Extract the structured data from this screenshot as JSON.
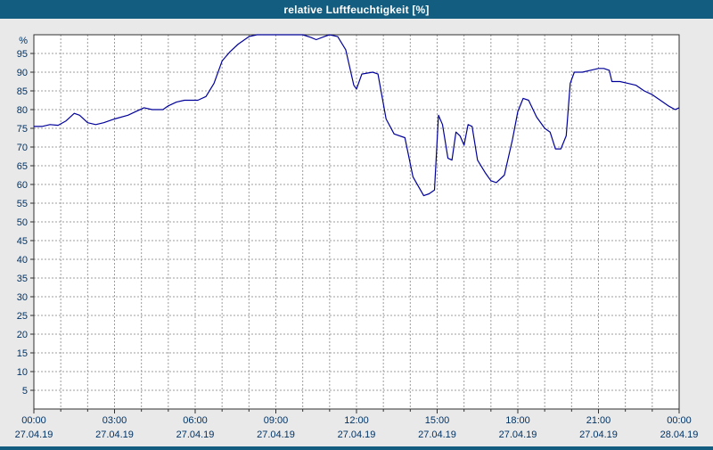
{
  "window": {
    "title": "relative Luftfeuchtigkeit [%]"
  },
  "colors": {
    "titlebar": "#135e80",
    "background": "#e9e9e9",
    "plot_bg": "#ffffff",
    "grid": "#9c9c9c",
    "plot_border": "#303030",
    "axis_text": "#003366",
    "line": "#000099"
  },
  "chart_data": {
    "type": "line",
    "title": "relative Luftfeuchtigkeit [%]",
    "ylabel": "%",
    "ylim": [
      0,
      100
    ],
    "y_ticks": [
      5,
      10,
      15,
      20,
      25,
      30,
      35,
      40,
      45,
      50,
      55,
      60,
      65,
      70,
      75,
      80,
      85,
      90,
      95
    ],
    "x_range_hours": [
      0,
      24
    ],
    "x_minor_tick_every_hours": 1,
    "grid": "dashed",
    "legend": "none",
    "x_ticks": [
      {
        "hour": 0,
        "time": "00:00",
        "date": "27.04.19"
      },
      {
        "hour": 3,
        "time": "03:00",
        "date": "27.04.19"
      },
      {
        "hour": 6,
        "time": "06:00",
        "date": "27.04.19"
      },
      {
        "hour": 9,
        "time": "09:00",
        "date": "27.04.19"
      },
      {
        "hour": 12,
        "time": "12:00",
        "date": "27.04.19"
      },
      {
        "hour": 15,
        "time": "15:00",
        "date": "27.04.19"
      },
      {
        "hour": 18,
        "time": "18:00",
        "date": "27.04.19"
      },
      {
        "hour": 21,
        "time": "21:00",
        "date": "27.04.19"
      },
      {
        "hour": 24,
        "time": "00:00",
        "date": "28.04.19"
      }
    ],
    "series": [
      {
        "name": "relative Luftfeuchtigkeit [%]",
        "points": [
          [
            0,
            75.5
          ],
          [
            0.3,
            75.5
          ],
          [
            0.6,
            76
          ],
          [
            0.9,
            75.8
          ],
          [
            1.2,
            77
          ],
          [
            1.5,
            79
          ],
          [
            1.7,
            78.5
          ],
          [
            2,
            76.5
          ],
          [
            2.3,
            76
          ],
          [
            2.6,
            76.5
          ],
          [
            3,
            77.5
          ],
          [
            3.5,
            78.5
          ],
          [
            3.8,
            79.5
          ],
          [
            4.1,
            80.5
          ],
          [
            4.4,
            80
          ],
          [
            4.8,
            80
          ],
          [
            5,
            81
          ],
          [
            5.3,
            82
          ],
          [
            5.6,
            82.5
          ],
          [
            6.1,
            82.5
          ],
          [
            6.4,
            83.5
          ],
          [
            6.7,
            87
          ],
          [
            7,
            93
          ],
          [
            7.3,
            95.5
          ],
          [
            7.6,
            97.5
          ],
          [
            8,
            99.5
          ],
          [
            8.3,
            100
          ],
          [
            10,
            100
          ],
          [
            10.3,
            99.3
          ],
          [
            10.5,
            98.7
          ],
          [
            10.8,
            99.5
          ],
          [
            11,
            100
          ],
          [
            11.3,
            99.5
          ],
          [
            11.6,
            96
          ],
          [
            11.9,
            86.5
          ],
          [
            12,
            85.5
          ],
          [
            12.2,
            89.5
          ],
          [
            12.6,
            90
          ],
          [
            12.8,
            89.5
          ],
          [
            13.1,
            77.5
          ],
          [
            13.4,
            73.5
          ],
          [
            13.8,
            72.5
          ],
          [
            14.1,
            62
          ],
          [
            14.3,
            59.5
          ],
          [
            14.5,
            57
          ],
          [
            14.7,
            57.5
          ],
          [
            14.9,
            58.5
          ],
          [
            15.05,
            78.5
          ],
          [
            15.2,
            76
          ],
          [
            15.4,
            67
          ],
          [
            15.55,
            66.5
          ],
          [
            15.7,
            74
          ],
          [
            15.85,
            73
          ],
          [
            16,
            70.5
          ],
          [
            16.15,
            76
          ],
          [
            16.3,
            75.5
          ],
          [
            16.5,
            66.5
          ],
          [
            16.8,
            63
          ],
          [
            17,
            61
          ],
          [
            17.2,
            60.5
          ],
          [
            17.5,
            62.5
          ],
          [
            17.8,
            72
          ],
          [
            18,
            79.5
          ],
          [
            18.2,
            83
          ],
          [
            18.4,
            82.5
          ],
          [
            18.7,
            78
          ],
          [
            19,
            75
          ],
          [
            19.2,
            74
          ],
          [
            19.4,
            69.5
          ],
          [
            19.6,
            69.5
          ],
          [
            19.8,
            73
          ],
          [
            19.95,
            87
          ],
          [
            20.1,
            90
          ],
          [
            20.4,
            90
          ],
          [
            20.7,
            90.5
          ],
          [
            21,
            91
          ],
          [
            21.2,
            91
          ],
          [
            21.4,
            90.5
          ],
          [
            21.5,
            87.5
          ],
          [
            21.8,
            87.5
          ],
          [
            22.1,
            87
          ],
          [
            22.4,
            86.5
          ],
          [
            22.7,
            85
          ],
          [
            23,
            84
          ],
          [
            23.3,
            82.5
          ],
          [
            23.6,
            81
          ],
          [
            23.85,
            80
          ],
          [
            24,
            80.5
          ]
        ]
      }
    ]
  }
}
